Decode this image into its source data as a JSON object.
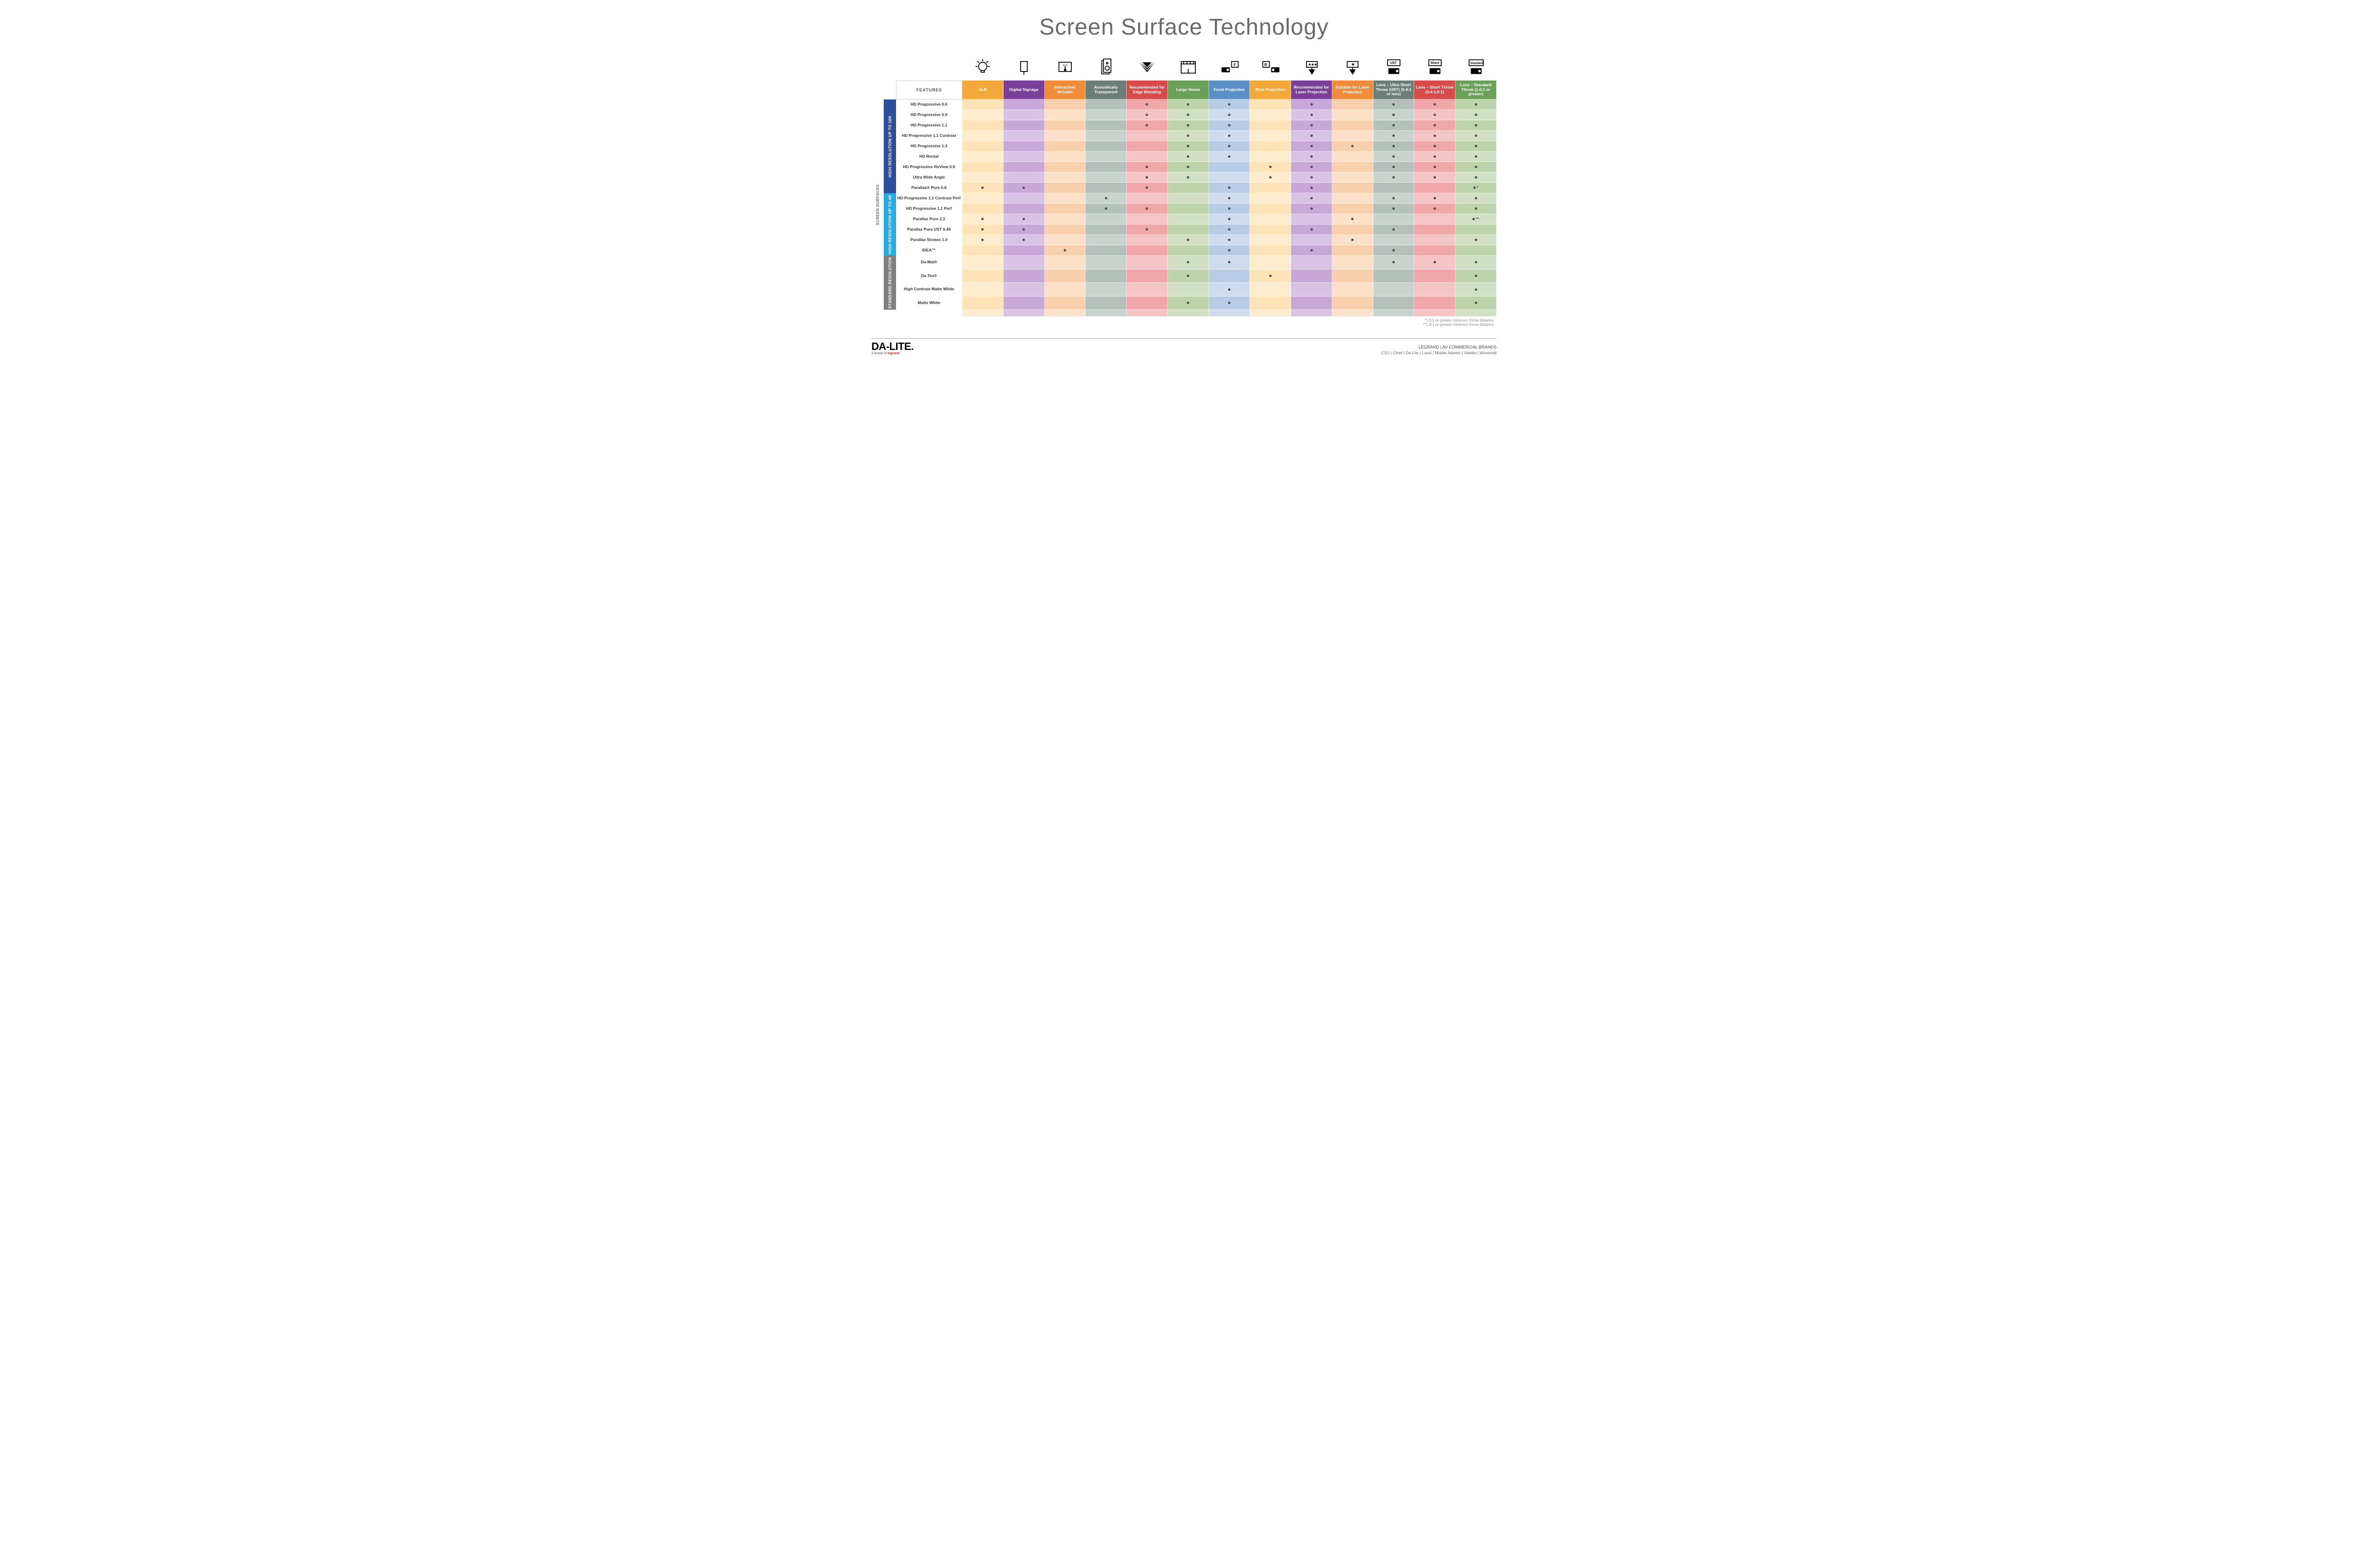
{
  "title": "Screen Surface Technology",
  "featuresHeader": "FEATURES",
  "footnotes": [
    "*1.5:1 or greater minimum throw distance",
    "**1.8:1 or greater minimum throw distance"
  ],
  "footer": {
    "logo": "DA-LITE.",
    "tagline_prefix": "A brand of ",
    "tagline_brand": "legrand",
    "right_title": "LEGRAND | AV COMMERCIAL BRANDS",
    "right_brands": "C2G  |  Chief  |  Da-Lite  |  Luxul  |  Middle Atlantic  |  Vaddio  |  Wiremold"
  },
  "sideOuter": {
    "label": "SCREEN SURFACES",
    "color": "#ffffff",
    "textColor": "#666666"
  },
  "sideGroups": [
    {
      "id": "hr16k",
      "label": "HIGH RESOLUTION UP TO 16K",
      "color": "#2d4f9b",
      "rows": 9
    },
    {
      "id": "hr4k",
      "label": "HIGH RESOLUTION UP TO 4K",
      "color": "#29abe2",
      "rows": 6
    },
    {
      "id": "std",
      "label": "STANDARD RESOLUTION",
      "color": "#808080",
      "rows": 4
    }
  ],
  "columns": [
    {
      "id": "alr",
      "label": "ALR",
      "icon": "bulb",
      "color": "#f3a93b"
    },
    {
      "id": "dsig",
      "label": "Digital Signage",
      "icon": "signage",
      "color": "#7a3f98"
    },
    {
      "id": "intr",
      "label": "Interactive/ Writable",
      "icon": "touch",
      "color": "#f08c3c"
    },
    {
      "id": "acou",
      "label": "Acoustically Transparent",
      "icon": "speaker",
      "color": "#6b7f78"
    },
    {
      "id": "edge",
      "label": "Recommended for Edge Blending",
      "icon": "blend",
      "color": "#d94b4b"
    },
    {
      "id": "venue",
      "label": "Large Venue",
      "icon": "venue",
      "color": "#6aa05a"
    },
    {
      "id": "front",
      "label": "Front Projection",
      "icon": "front",
      "color": "#5a8fc7"
    },
    {
      "id": "rear",
      "label": "Rear Projection",
      "icon": "rear",
      "color": "#f3a93b"
    },
    {
      "id": "rlas",
      "label": "Recommended for Laser Projection",
      "icon": "rlaser",
      "color": "#7a3f98"
    },
    {
      "id": "slas",
      "label": "Suitable for Laser Projection",
      "icon": "slaser",
      "color": "#f08c3c"
    },
    {
      "id": "ust",
      "label": "Lens – Ultra Short Throw (UST) (0.4:1 or less)",
      "icon": "ust",
      "color": "#6b7f78"
    },
    {
      "id": "short",
      "label": "Lens – Short Throw (0.4-1.0:1)",
      "icon": "short",
      "color": "#d94b4b"
    },
    {
      "id": "stdl",
      "label": "Lens – Standard Throw (1.0:1 or greater)",
      "icon": "stdthrow",
      "color": "#6aa05a"
    }
  ],
  "colorTints": {
    "alr": [
      "#fce3b8",
      "#fdecce"
    ],
    "dsig": [
      "#c7a8d6",
      "#d9c2e3"
    ],
    "intr": [
      "#f9d0ad",
      "#fce1c9"
    ],
    "acou": [
      "#b5c0bb",
      "#cad2ce"
    ],
    "edge": [
      "#efa7a7",
      "#f5c4c4"
    ],
    "venue": [
      "#bdd3ac",
      "#d1e0c4"
    ],
    "front": [
      "#b8cde5",
      "#cfdcee"
    ],
    "rear": [
      "#fce3b8",
      "#fdecce"
    ],
    "rlas": [
      "#c7a8d6",
      "#d9c2e3"
    ],
    "slas": [
      "#f9d0ad",
      "#fce1c9"
    ],
    "ust": [
      "#b5c0bb",
      "#cad2ce"
    ],
    "short": [
      "#efa7a7",
      "#f5c4c4"
    ],
    "stdl": [
      "#bdd3ac",
      "#d1e0c4"
    ]
  },
  "rows": [
    {
      "group": "hr16k",
      "label": "HD Progressive 0.6",
      "dots": {
        "edge": "•",
        "venue": "•",
        "front": "•",
        "rlas": "•",
        "ust": "•",
        "short": "•",
        "stdl": "•"
      }
    },
    {
      "group": "hr16k",
      "label": "HD Progressive 0.9",
      "dots": {
        "edge": "•",
        "venue": "•",
        "front": "•",
        "rlas": "•",
        "ust": "•",
        "short": "•",
        "stdl": "•"
      }
    },
    {
      "group": "hr16k",
      "label": "HD Progressive 1.1",
      "dots": {
        "edge": "•",
        "venue": "•",
        "front": "•",
        "rlas": "•",
        "ust": "•",
        "short": "•",
        "stdl": "•"
      }
    },
    {
      "group": "hr16k",
      "label": "HD Progressive 1.1 Contrast",
      "dots": {
        "venue": "•",
        "front": "•",
        "rlas": "•",
        "ust": "•",
        "short": "•",
        "stdl": "•"
      }
    },
    {
      "group": "hr16k",
      "label": "HD Progressive 1.3",
      "dots": {
        "venue": "•",
        "front": "•",
        "rlas": "•",
        "slas": "•",
        "ust": "•",
        "short": "•",
        "stdl": "•"
      }
    },
    {
      "group": "hr16k",
      "label": "HD Rental",
      "dots": {
        "venue": "•",
        "front": "•",
        "rlas": "•",
        "ust": "•",
        "short": "•",
        "stdl": "•"
      }
    },
    {
      "group": "hr16k",
      "label": "HD Progressive ReView 0.9",
      "dots": {
        "edge": "•",
        "venue": "•",
        "rear": "•",
        "rlas": "•",
        "ust": "•",
        "short": "•",
        "stdl": "•"
      }
    },
    {
      "group": "hr16k",
      "label": "Ultra Wide Angle",
      "dots": {
        "edge": "•",
        "venue": "•",
        "rear": "•",
        "rlas": "•",
        "ust": "•",
        "short": "•",
        "stdl": "•"
      }
    },
    {
      "group": "hr16k",
      "label": "Parallax® Pure 0.8",
      "dots": {
        "alr": "•",
        "dsig": "•",
        "edge": "•",
        "front": "•",
        "rlas": "•",
        "stdl": "•*"
      }
    },
    {
      "group": "hr4k",
      "label": "HD Progressive 1.1 Contrast Perf",
      "dots": {
        "acou": "•",
        "front": "•",
        "rlas": "•",
        "ust": "•",
        "short": "•",
        "stdl": "•"
      }
    },
    {
      "group": "hr4k",
      "label": "HD Progressive 1.1 Perf",
      "dots": {
        "acou": "•",
        "edge": "•",
        "front": "•",
        "rlas": "•",
        "ust": "•",
        "short": "•",
        "stdl": "•"
      }
    },
    {
      "group": "hr4k",
      "label": "Parallax Pure 2.3",
      "dots": {
        "alr": "•",
        "dsig": "•",
        "front": "•",
        "slas": "•",
        "stdl": "•**"
      }
    },
    {
      "group": "hr4k",
      "label": "Parallax Pure UST 0.45",
      "dots": {
        "alr": "•",
        "dsig": "•",
        "edge": "•",
        "front": "•",
        "rlas": "•",
        "ust": "•"
      }
    },
    {
      "group": "hr4k",
      "label": "Parallax Stratos 1.0",
      "dots": {
        "alr": "•",
        "dsig": "•",
        "venue": "•",
        "front": "•",
        "slas": "•",
        "stdl": "•"
      }
    },
    {
      "group": "hr4k",
      "label": "IDEA™",
      "dots": {
        "intr": "•",
        "front": "•",
        "rlas": "•",
        "ust": "•"
      }
    },
    {
      "group": "std",
      "label": "Da-Mat®",
      "dots": {
        "venue": "•",
        "front": "•",
        "ust": "•",
        "short": "•",
        "stdl": "•"
      }
    },
    {
      "group": "std",
      "label": "Da-Tex®",
      "dots": {
        "venue": "•",
        "rear": "•",
        "stdl": "•"
      }
    },
    {
      "group": "std",
      "label": "High Contrast Matte White",
      "dots": {
        "front": "•",
        "stdl": "•"
      }
    },
    {
      "group": "std",
      "label": "Matte White",
      "dots": {
        "venue": "•",
        "front": "•",
        "stdl": "•"
      }
    }
  ]
}
